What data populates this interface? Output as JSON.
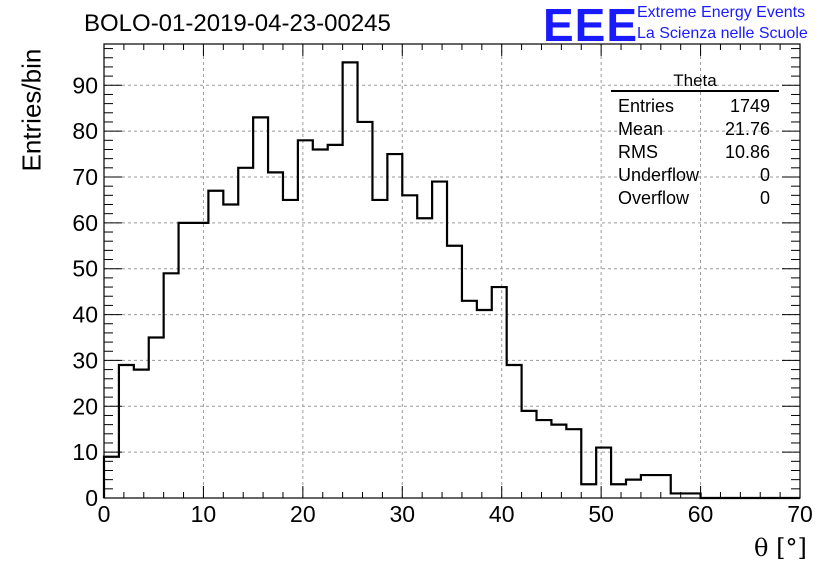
{
  "header": {
    "title": "BOLO-01-2019-04-23-00245",
    "logo_mark": "EEE",
    "logo_line1": "Extreme Energy Events",
    "logo_line2": "La Scienza nelle Scuole",
    "logo_color": "#1a1aff"
  },
  "stats_box": {
    "title": "Theta",
    "rows": [
      {
        "label": "Entries",
        "value": "1749"
      },
      {
        "label": "Mean",
        "value": "21.76"
      },
      {
        "label": "RMS",
        "value": "10.86"
      },
      {
        "label": "Underflow",
        "value": "0"
      },
      {
        "label": "Overflow",
        "value": "0"
      }
    ]
  },
  "chart_data": {
    "type": "bar",
    "histogram_style": "step",
    "title": "BOLO-01-2019-04-23-00245",
    "xlabel": "θ [°]",
    "ylabel": "Entries/bin",
    "xlim": [
      0,
      70
    ],
    "ylim": [
      0,
      99
    ],
    "xticks": [
      0,
      10,
      20,
      30,
      40,
      50,
      60,
      70
    ],
    "yticks": [
      0,
      10,
      20,
      30,
      40,
      50,
      60,
      70,
      80,
      90
    ],
    "grid": true,
    "bin_width": 1.5,
    "bin_start": 0,
    "values": [
      9,
      29,
      28,
      35,
      49,
      60,
      60,
      67,
      64,
      72,
      83,
      71,
      65,
      78,
      76,
      77,
      95,
      82,
      65,
      75,
      66,
      61,
      69,
      55,
      43,
      41,
      46,
      29,
      19,
      17,
      16,
      15,
      3,
      11,
      3,
      4,
      5,
      5,
      1,
      1,
      0,
      0,
      0,
      0,
      0,
      0,
      0
    ],
    "line_color": "#000000",
    "grid_color": "#9a9a9a"
  }
}
